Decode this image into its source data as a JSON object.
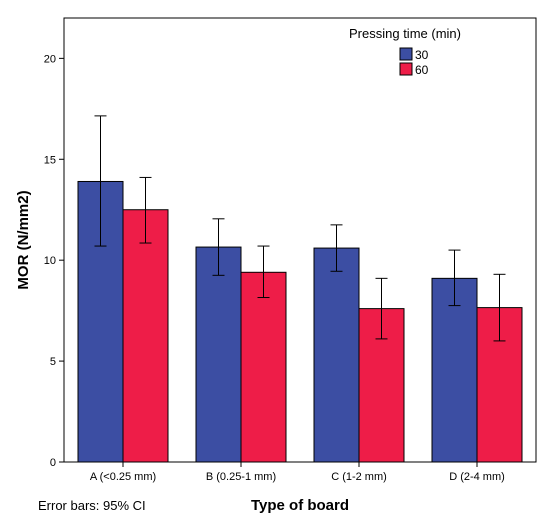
{
  "chart_data": {
    "type": "bar",
    "categories": [
      "A (<0.25 mm)",
      "B (0.25-1 mm)",
      "C (1-2 mm)",
      "D (2-4 mm)"
    ],
    "series": [
      {
        "name": "30",
        "color": "#3c4ea3",
        "values": [
          13.9,
          10.65,
          10.6,
          9.1
        ],
        "ci_low": [
          10.7,
          9.25,
          9.45,
          7.75
        ],
        "ci_high": [
          17.15,
          12.05,
          11.75,
          10.5
        ]
      },
      {
        "name": "60",
        "color": "#ee1d48",
        "values": [
          12.5,
          9.4,
          7.6,
          7.65
        ],
        "ci_low": [
          10.85,
          8.15,
          6.1,
          6.0
        ],
        "ci_high": [
          14.1,
          10.7,
          9.1,
          9.3
        ]
      }
    ],
    "xlabel": "Type of board",
    "ylabel": "MOR (N/mm2)",
    "ylim": [
      0,
      22
    ],
    "yticks": [
      0,
      5,
      10,
      15,
      20
    ],
    "legend_title": "Pressing time (min)",
    "legend_position": "top-right",
    "footnote": "Error bars: 95% CI",
    "grid": false
  }
}
